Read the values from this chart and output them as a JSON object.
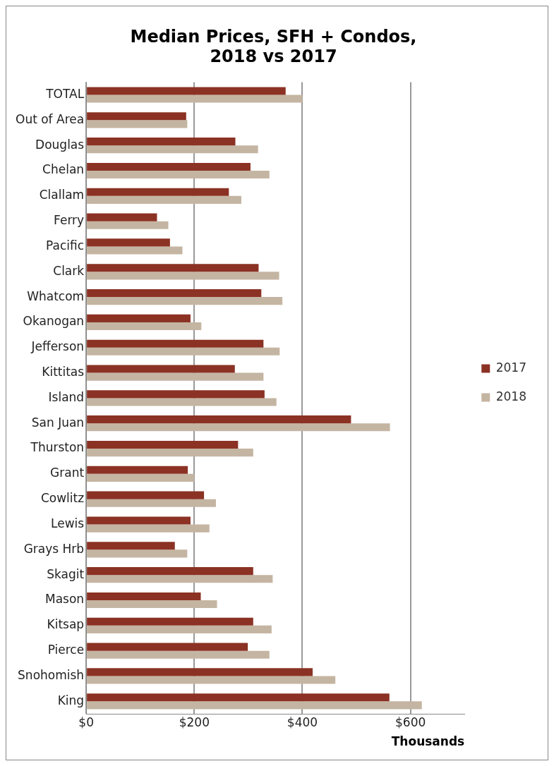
{
  "chart_data": {
    "type": "bar",
    "orientation": "horizontal",
    "title": "Median Prices, SFH + Condos,\n2018 vs 2017",
    "xlabel": "Thousands",
    "categories": [
      "TOTAL",
      "Out of Area",
      "Douglas",
      "Chelan",
      "Clallam",
      "Ferry",
      "Pacific",
      "Clark",
      "Whatcom",
      "Okanogan",
      "Jefferson",
      "Kittitas",
      "Island",
      "San Juan",
      "Thurston",
      "Grant",
      "Cowlitz",
      "Lewis",
      "Grays Hrb",
      "Skagit",
      "Mason",
      "Kitsap",
      "Pierce",
      "Snohomish",
      "King"
    ],
    "series": [
      {
        "name": "2017",
        "color": "#8b3224",
        "values": [
          369,
          185,
          276,
          304,
          264,
          131,
          155,
          319,
          324,
          193,
          328,
          275,
          330,
          490,
          281,
          188,
          218,
          193,
          164,
          309,
          212,
          309,
          299,
          419,
          561
        ]
      },
      {
        "name": "2018",
        "color": "#c4b5a2",
        "values": [
          400,
          187,
          318,
          339,
          287,
          152,
          178,
          357,
          363,
          213,
          358,
          328,
          352,
          562,
          309,
          200,
          240,
          228,
          187,
          345,
          242,
          343,
          339,
          461,
          621
        ]
      }
    ],
    "xlim": [
      0,
      700
    ],
    "xticks": [
      {
        "value": 0,
        "label": "$0"
      },
      {
        "value": 200,
        "label": "$200"
      },
      {
        "value": 400,
        "label": "$400"
      },
      {
        "value": 600,
        "label": "$600"
      }
    ],
    "grid": "x",
    "legend": "right"
  }
}
